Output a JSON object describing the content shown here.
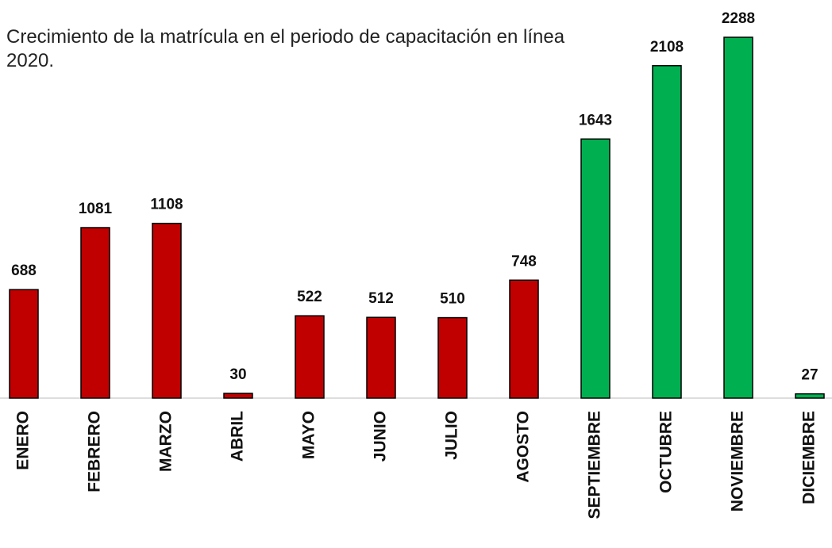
{
  "chart_data": {
    "type": "bar",
    "title": "Crecimiento de la matrícula en el periodo de capacitación en línea 2020.",
    "categories": [
      "ENERO",
      "FEBRERO",
      "MARZO",
      "ABRIL",
      "MAYO",
      "JUNIO",
      "JULIO",
      "AGOSTO",
      "SEPTIEMBRE",
      "OCTUBRE",
      "NOVIEMBRE",
      "DICIEMBRE"
    ],
    "values": [
      688,
      1081,
      1108,
      30,
      522,
      512,
      510,
      748,
      1643,
      2108,
      2288,
      27
    ],
    "colors": [
      "#c00000",
      "#c00000",
      "#c00000",
      "#c00000",
      "#c00000",
      "#c00000",
      "#c00000",
      "#c00000",
      "#00b050",
      "#00b050",
      "#00b050",
      "#00b050"
    ]
  }
}
